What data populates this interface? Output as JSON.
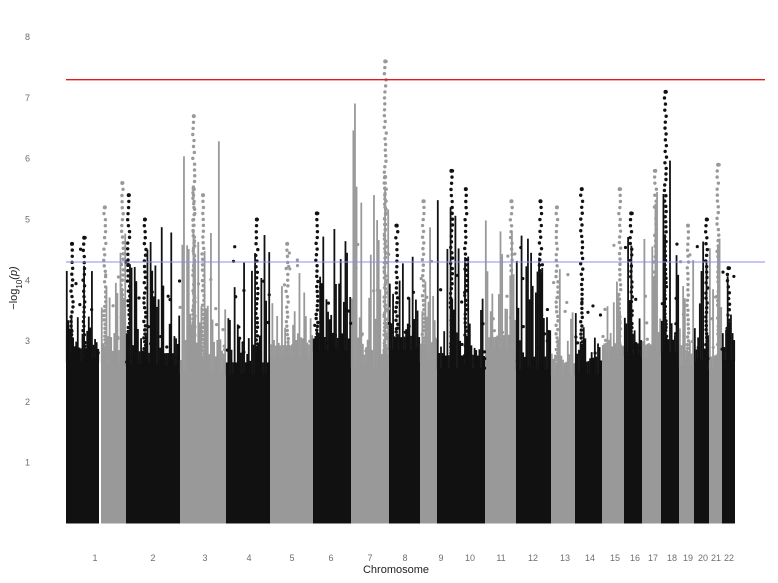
{
  "chart_data": {
    "type": "scatter",
    "subtype": "manhattan",
    "title": "",
    "xlabel": "Chromosome",
    "ylabel": "-log10(p)",
    "ylabel_parts": {
      "prefix": "−log",
      "subscript": "10",
      "suffix": "(p)"
    },
    "ylim": [
      0,
      8
    ],
    "yticks": [
      "1",
      "2",
      "3",
      "4",
      "5",
      "6",
      "7",
      "8"
    ],
    "grid": false,
    "legend": "none",
    "colors": {
      "odd_chromosome": "#111111",
      "even_chromosome": "#999999",
      "genome_wide_line": "#e31a1c",
      "suggestive_line": "#8c8cf0"
    },
    "thresholds": {
      "genome_wide": 7.3,
      "suggestive": 4.3
    },
    "chromosomes": [
      {
        "label": "1",
        "max": 4.7,
        "peaks": [
          {
            "offset": 0.18,
            "value": 4.6
          },
          {
            "offset": 0.55,
            "value": 4.7
          }
        ]
      },
      {
        "label": "",
        "max": 5.6,
        "peaks": [
          {
            "offset": 0.15,
            "value": 5.2
          },
          {
            "offset": 0.85,
            "value": 5.6
          }
        ]
      },
      {
        "label": "2",
        "max": 5.4,
        "peaks": [
          {
            "offset": 0.05,
            "value": 5.4
          },
          {
            "offset": 0.35,
            "value": 5.0
          }
        ]
      },
      {
        "label": "3",
        "max": 6.7,
        "peaks": [
          {
            "offset": 0.3,
            "value": 6.7
          },
          {
            "offset": 0.3,
            "value": 5.5
          },
          {
            "offset": 0.5,
            "value": 5.4
          }
        ]
      },
      {
        "label": "4",
        "max": 5.0,
        "peaks": [
          {
            "offset": 0.7,
            "value": 5.0
          }
        ]
      },
      {
        "label": "5",
        "max": 4.6,
        "peaks": [
          {
            "offset": 0.4,
            "value": 4.6
          }
        ]
      },
      {
        "label": "6",
        "max": 5.1,
        "peaks": [
          {
            "offset": 0.1,
            "value": 5.1
          }
        ]
      },
      {
        "label": "7",
        "max": 7.6,
        "peaks": [
          {
            "offset": 0.9,
            "value": 7.6
          },
          {
            "offset": 0.9,
            "value": 5.7
          }
        ]
      },
      {
        "label": "8",
        "max": 4.9,
        "peaks": [
          {
            "offset": 0.25,
            "value": 4.9
          }
        ]
      },
      {
        "label": "9",
        "max": 5.3,
        "peaks": [
          {
            "offset": 0.2,
            "value": 5.3
          }
        ]
      },
      {
        "label": "10",
        "max": 5.8,
        "peaks": [
          {
            "offset": 0.3,
            "value": 5.8
          },
          {
            "offset": 0.6,
            "value": 5.5
          }
        ]
      },
      {
        "label": "11",
        "max": 5.3,
        "peaks": [
          {
            "offset": 0.85,
            "value": 5.3
          }
        ]
      },
      {
        "label": "12",
        "max": 5.3,
        "peaks": [
          {
            "offset": 0.7,
            "value": 5.3
          }
        ]
      },
      {
        "label": "13",
        "max": 5.2,
        "peaks": [
          {
            "offset": 0.25,
            "value": 5.2
          }
        ]
      },
      {
        "label": "14",
        "max": 5.5,
        "peaks": [
          {
            "offset": 0.25,
            "value": 5.5
          }
        ]
      },
      {
        "label": "15",
        "max": 5.5,
        "peaks": [
          {
            "offset": 0.8,
            "value": 5.5
          }
        ]
      },
      {
        "label": "16",
        "max": 5.1,
        "peaks": [
          {
            "offset": 0.4,
            "value": 5.1
          }
        ]
      },
      {
        "label": "17",
        "max": 5.8,
        "peaks": [
          {
            "offset": 0.7,
            "value": 5.8
          }
        ]
      },
      {
        "label": "18",
        "max": 7.1,
        "peaks": [
          {
            "offset": 0.25,
            "value": 7.1
          }
        ]
      },
      {
        "label": "19",
        "max": 4.9,
        "peaks": [
          {
            "offset": 0.6,
            "value": 4.9
          }
        ]
      },
      {
        "label": "20",
        "max": 5.0,
        "peaks": [
          {
            "offset": 0.85,
            "value": 5.0
          }
        ]
      },
      {
        "label": "21",
        "max": 5.9,
        "peaks": [
          {
            "offset": 0.7,
            "value": 5.9
          }
        ]
      },
      {
        "label": "22",
        "max": 4.2,
        "peaks": [
          {
            "offset": 0.5,
            "value": 4.2
          }
        ]
      }
    ]
  }
}
